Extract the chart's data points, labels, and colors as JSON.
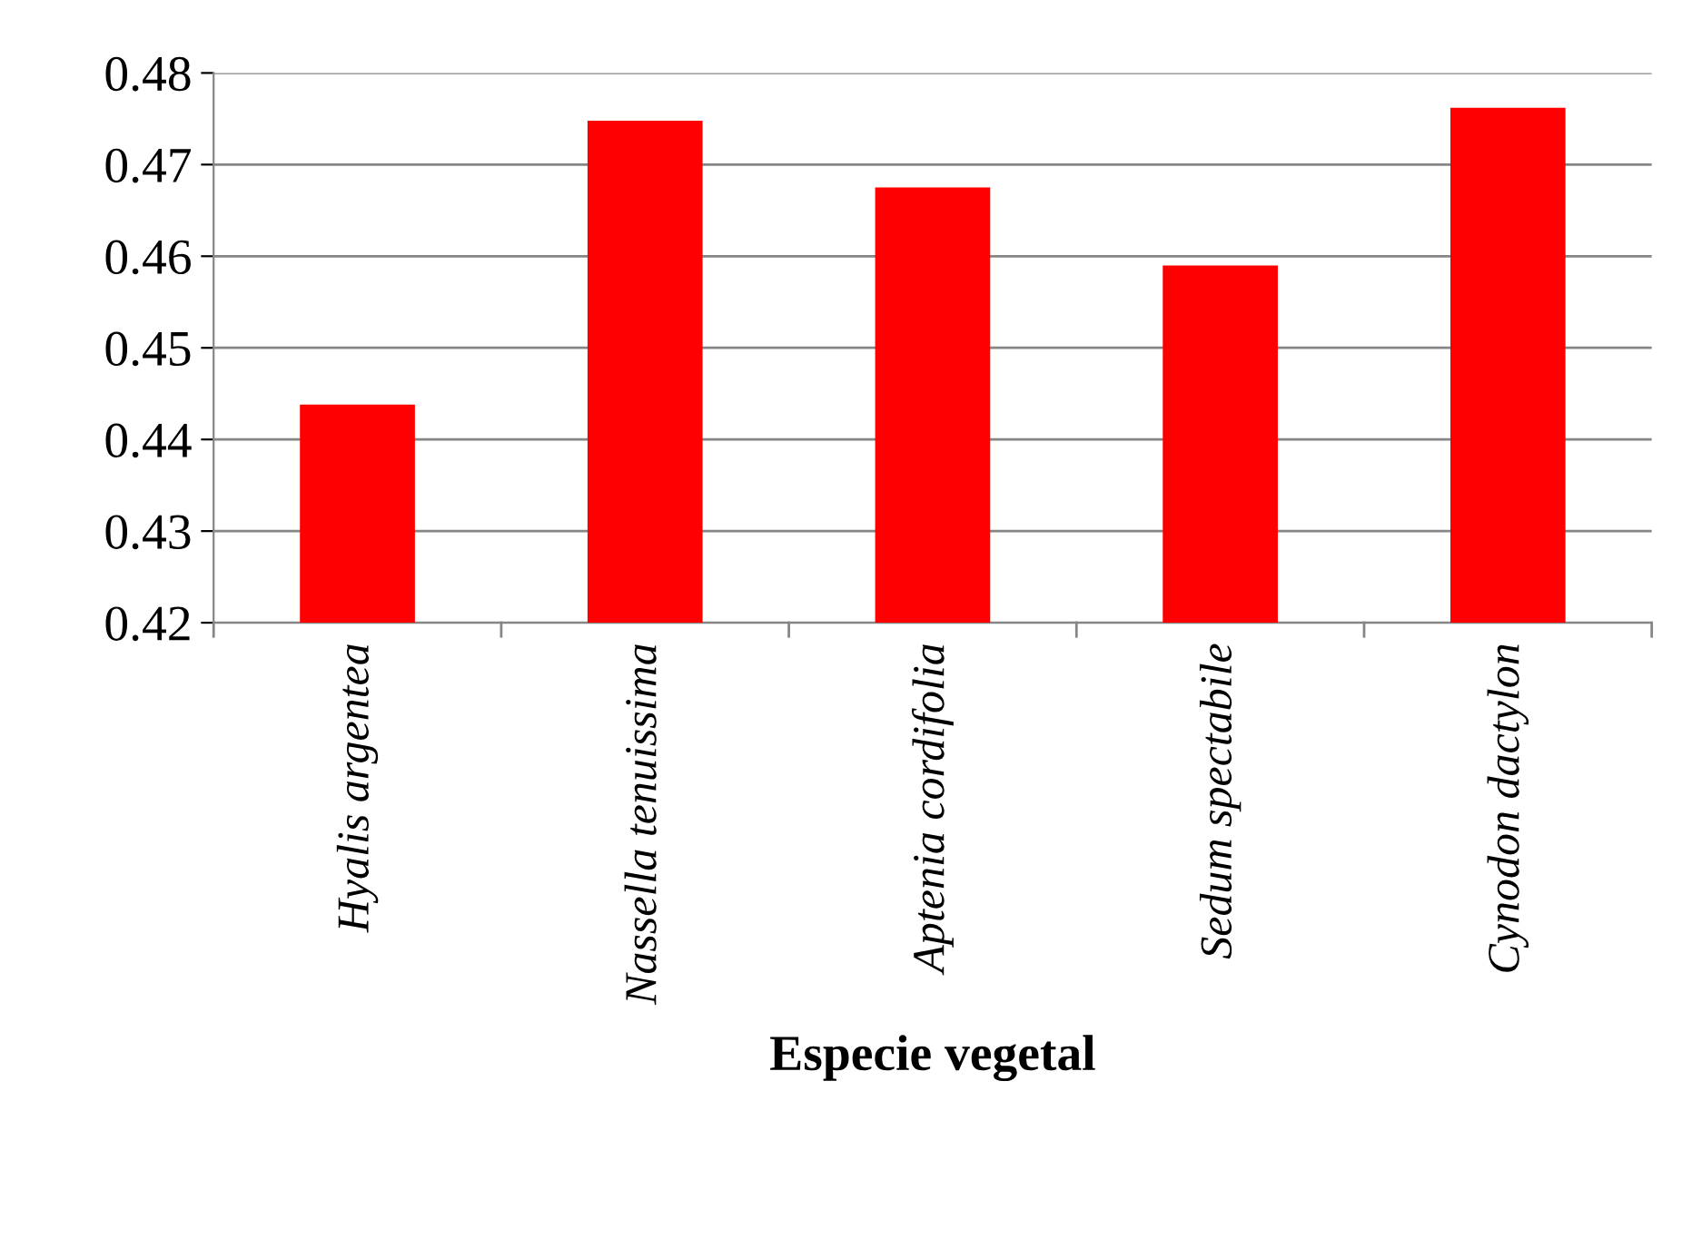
{
  "chart_data": {
    "type": "bar",
    "xlabel": "Especie vegetal",
    "categories": [
      "Hyalis argentea",
      "Nassella tenuissima",
      "Aptenia cordifolia",
      "Sedum spectabile",
      "Cynodon dactylon"
    ],
    "values": [
      0.4438,
      0.4748,
      0.4675,
      0.459,
      0.4762
    ],
    "color": "#ff0000",
    "ylim": [
      0.42,
      0.48
    ],
    "yticks": [
      0.42,
      0.43,
      0.44,
      0.45,
      0.46,
      0.47,
      0.48
    ],
    "grid": "y"
  }
}
